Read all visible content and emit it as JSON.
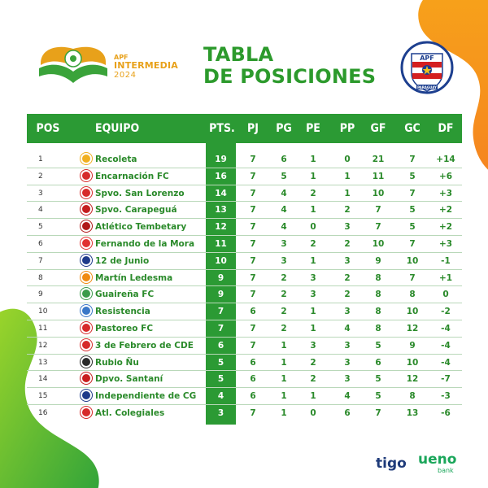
{
  "header": {
    "brand_apf": "APF",
    "brand_name": "INTERMEDIA",
    "brand_year": "2024",
    "title_line1": "TABLA",
    "title_line2": "DE POSICIONES",
    "apf_badge_text": "APF",
    "apf_badge_sub": "PARAGUAY"
  },
  "columns": {
    "pos": "POS",
    "team": "EQUIPO",
    "pts": "PTS.",
    "pj": "PJ",
    "pg": "PG",
    "pe": "PE",
    "pp": "PP",
    "gf": "GF",
    "gc": "GC",
    "df": "DF"
  },
  "rows": [
    {
      "pos": "1",
      "team": "Recoleta",
      "pts": "19",
      "pj": "7",
      "pg": "6",
      "pe": "1",
      "pp": "0",
      "gf": "21",
      "gc": "7",
      "df": "+14",
      "color": "#f0b020"
    },
    {
      "pos": "2",
      "team": "Encarnación FC",
      "pts": "16",
      "pj": "7",
      "pg": "5",
      "pe": "1",
      "pp": "1",
      "gf": "11",
      "gc": "5",
      "df": "+6",
      "color": "#d62a2a"
    },
    {
      "pos": "3",
      "team": "Spvo. San Lorenzo",
      "pts": "14",
      "pj": "7",
      "pg": "4",
      "pe": "2",
      "pp": "1",
      "gf": "10",
      "gc": "7",
      "df": "+3",
      "color": "#d62a2a"
    },
    {
      "pos": "4",
      "team": "Spvo. Carapeguá",
      "pts": "13",
      "pj": "7",
      "pg": "4",
      "pe": "1",
      "pp": "2",
      "gf": "7",
      "gc": "5",
      "df": "+2",
      "color": "#c41e1e"
    },
    {
      "pos": "5",
      "team": "Atlético Tembetary",
      "pts": "12",
      "pj": "7",
      "pg": "4",
      "pe": "0",
      "pp": "3",
      "gf": "7",
      "gc": "5",
      "df": "+2",
      "color": "#b01818"
    },
    {
      "pos": "6",
      "team": "Fernando de la Mora",
      "pts": "11",
      "pj": "7",
      "pg": "3",
      "pe": "2",
      "pp": "2",
      "gf": "10",
      "gc": "7",
      "df": "+3",
      "color": "#e03030"
    },
    {
      "pos": "7",
      "team": "12 de Junio",
      "pts": "10",
      "pj": "7",
      "pg": "3",
      "pe": "1",
      "pp": "3",
      "gf": "9",
      "gc": "10",
      "df": "-1",
      "color": "#1d3a8a"
    },
    {
      "pos": "8",
      "team": "Martín Ledesma",
      "pts": "9",
      "pj": "7",
      "pg": "2",
      "pe": "3",
      "pp": "2",
      "gf": "8",
      "gc": "7",
      "df": "+1",
      "color": "#f08a10"
    },
    {
      "pos": "9",
      "team": "Guaireña FC",
      "pts": "9",
      "pj": "7",
      "pg": "2",
      "pe": "3",
      "pp": "2",
      "gf": "8",
      "gc": "8",
      "df": "0",
      "color": "#3a9a4a"
    },
    {
      "pos": "10",
      "team": "Resistencia",
      "pts": "7",
      "pj": "6",
      "pg": "2",
      "pe": "1",
      "pp": "3",
      "gf": "8",
      "gc": "10",
      "df": "-2",
      "color": "#3a78c8"
    },
    {
      "pos": "11",
      "team": "Pastoreo FC",
      "pts": "7",
      "pj": "7",
      "pg": "2",
      "pe": "1",
      "pp": "4",
      "gf": "8",
      "gc": "12",
      "df": "-4",
      "color": "#d62a2a"
    },
    {
      "pos": "12",
      "team": "3 de Febrero de CDE",
      "pts": "6",
      "pj": "7",
      "pg": "1",
      "pe": "3",
      "pp": "3",
      "gf": "5",
      "gc": "9",
      "df": "-4",
      "color": "#d62a2a"
    },
    {
      "pos": "13",
      "team": "Rubio Ñu",
      "pts": "5",
      "pj": "6",
      "pg": "1",
      "pe": "2",
      "pp": "3",
      "gf": "6",
      "gc": "10",
      "df": "-4",
      "color": "#2a2a2a"
    },
    {
      "pos": "14",
      "team": "Dpvo. Santaní",
      "pts": "5",
      "pj": "6",
      "pg": "1",
      "pe": "2",
      "pp": "3",
      "gf": "5",
      "gc": "12",
      "df": "-7",
      "color": "#c81e1e"
    },
    {
      "pos": "15",
      "team": "Independiente de CG",
      "pts": "4",
      "pj": "6",
      "pg": "1",
      "pe": "1",
      "pp": "4",
      "gf": "5",
      "gc": "8",
      "df": "-3",
      "color": "#1e3a8a"
    },
    {
      "pos": "16",
      "team": "Atl. Colegiales",
      "pts": "3",
      "pj": "7",
      "pg": "1",
      "pe": "0",
      "pp": "6",
      "gf": "7",
      "gc": "13",
      "df": "-6",
      "color": "#d62a2a"
    }
  ],
  "sponsors": {
    "tigo": "tigo",
    "ueno": "ueno",
    "ueno_sub": "bank"
  },
  "colors": {
    "table_green": "#2b9a34",
    "title_green": "#2c9a2c",
    "accent_orange": "#f39a1e",
    "accent_green": "#4cbb2a"
  }
}
